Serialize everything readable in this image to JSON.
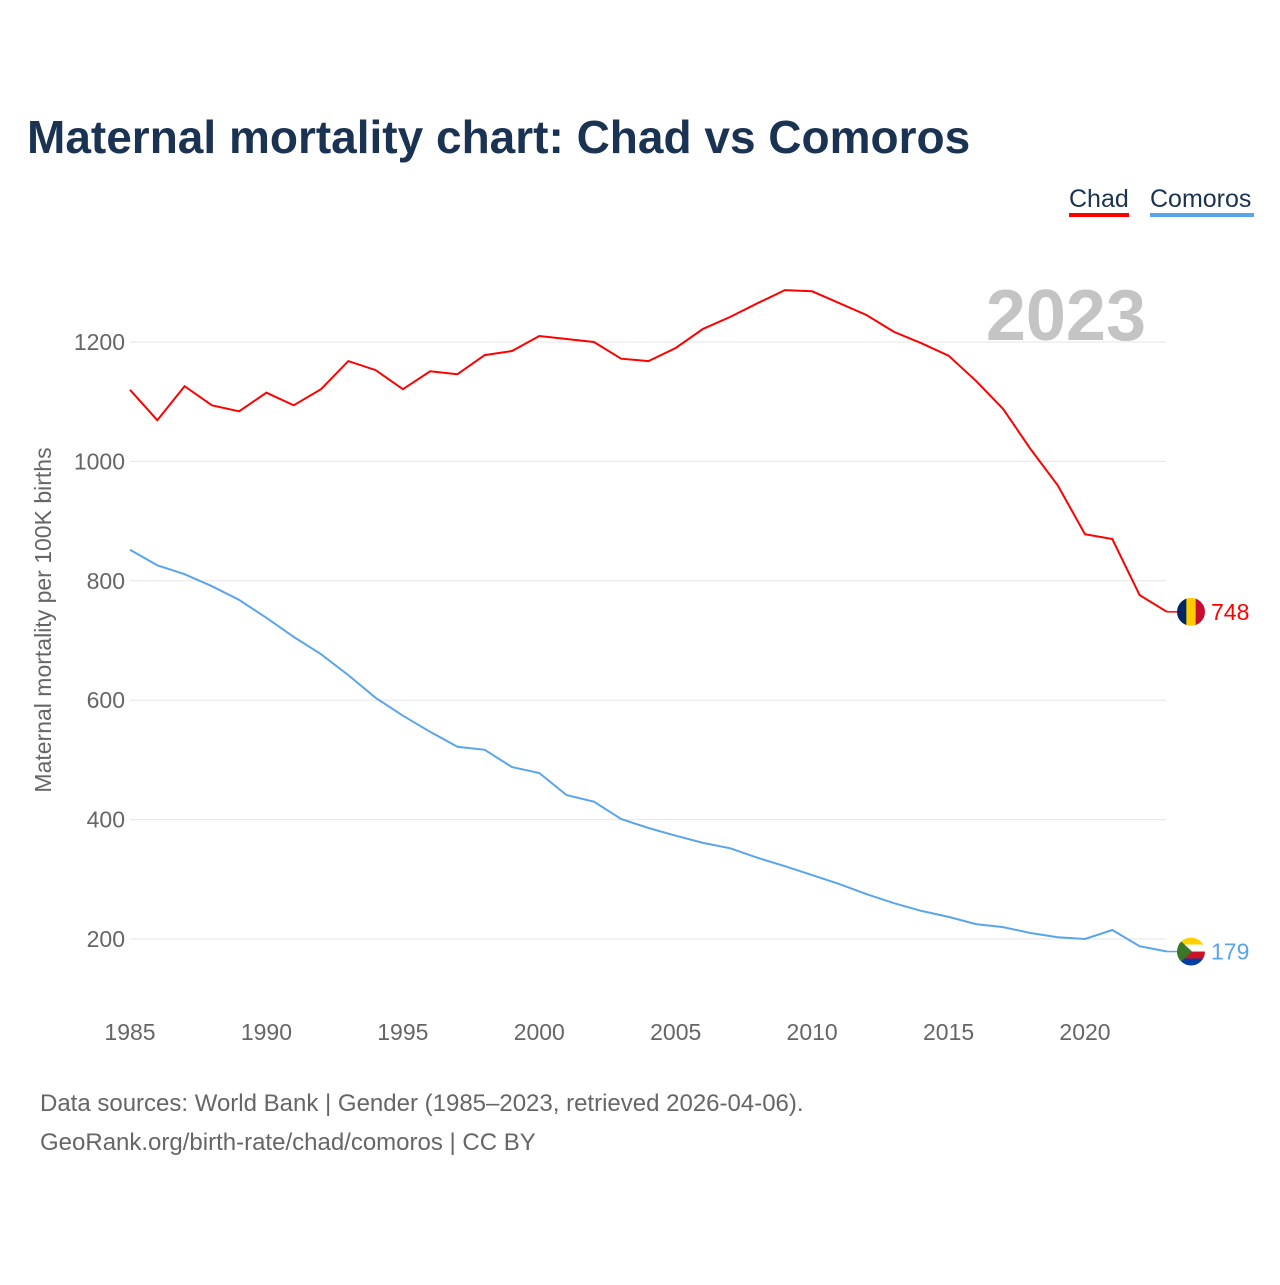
{
  "chart_data": {
    "type": "line",
    "title": "Maternal mortality chart: Chad vs Comoros",
    "ylabel": "Maternal mortality per 100K births",
    "xlabel": "",
    "year_label": "2023",
    "xlim": [
      1985,
      2023
    ],
    "ylim": [
      100,
      1300
    ],
    "yticks": [
      200,
      400,
      600,
      800,
      1000,
      1200
    ],
    "xticks": [
      1985,
      1990,
      1995,
      2000,
      2005,
      2010,
      2015,
      2020
    ],
    "grid": true,
    "legend_position": "top-right",
    "x": [
      1985,
      1986,
      1987,
      1988,
      1989,
      1990,
      1991,
      1992,
      1993,
      1994,
      1995,
      1996,
      1997,
      1998,
      1999,
      2000,
      2001,
      2002,
      2003,
      2004,
      2005,
      2006,
      2007,
      2008,
      2009,
      2010,
      2011,
      2012,
      2013,
      2014,
      2015,
      2016,
      2017,
      2018,
      2019,
      2020,
      2021,
      2022,
      2023
    ],
    "series": [
      {
        "name": "Chad",
        "color": "#ff0000",
        "end_label": "748",
        "values": [
          1120,
          1069,
          1126,
          1094,
          1084,
          1115,
          1094,
          1121,
          1168,
          1153,
          1121,
          1151,
          1146,
          1178,
          1185,
          1210,
          1205,
          1200,
          1172,
          1168,
          1190,
          1222,
          1242,
          1265,
          1287,
          1285,
          1265,
          1245,
          1217,
          1198,
          1177,
          1135,
          1088,
          1021,
          960,
          878,
          870,
          776,
          748
        ]
      },
      {
        "name": "Comoros",
        "color": "#5aa5ea",
        "end_label": "179",
        "values": [
          852,
          826,
          811,
          791,
          768,
          738,
          706,
          677,
          642,
          604,
          574,
          547,
          522,
          517,
          488,
          478,
          441,
          430,
          401,
          386,
          373,
          361,
          352,
          336,
          322,
          307,
          292,
          275,
          260,
          247,
          237,
          225,
          220,
          210,
          203,
          200,
          215,
          188,
          179
        ]
      }
    ]
  },
  "footer": {
    "line1": "Data sources: World Bank | Gender (1985–2023, retrieved 2026-04-06).",
    "line2": "GeoRank.org/birth-rate/chad/comoros | CC BY"
  }
}
